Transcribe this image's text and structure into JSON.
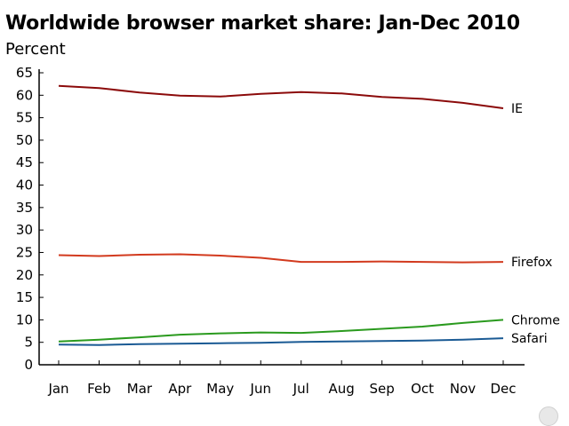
{
  "chart_data": {
    "type": "line",
    "title": "Worldwide browser market share: Jan-Dec 2010",
    "ylabel": "Percent",
    "xlabel": "",
    "categories": [
      "Jan",
      "Feb",
      "Mar",
      "Apr",
      "May",
      "Jun",
      "Jul",
      "Aug",
      "Sep",
      "Oct",
      "Nov",
      "Dec"
    ],
    "ylim": [
      0,
      65
    ],
    "yticks": [
      0,
      5,
      10,
      15,
      20,
      25,
      30,
      35,
      40,
      45,
      50,
      55,
      60,
      65
    ],
    "grid": false,
    "legend": "inline-right",
    "series": [
      {
        "name": "IE",
        "color": "#8b0a0a",
        "values": [
          62.1,
          61.6,
          60.6,
          59.9,
          59.7,
          60.3,
          60.7,
          60.4,
          59.6,
          59.2,
          58.3,
          57.1
        ]
      },
      {
        "name": "Firefox",
        "color": "#d23a1e",
        "values": [
          24.4,
          24.2,
          24.5,
          24.6,
          24.3,
          23.8,
          22.9,
          22.9,
          23.0,
          22.9,
          22.8,
          22.9
        ]
      },
      {
        "name": "Chrome",
        "color": "#2a9a1e",
        "values": [
          5.2,
          5.6,
          6.1,
          6.7,
          7.0,
          7.2,
          7.1,
          7.5,
          8.0,
          8.5,
          9.3,
          10.0
        ]
      },
      {
        "name": "Safari",
        "color": "#1a5a94",
        "values": [
          4.5,
          4.4,
          4.6,
          4.7,
          4.8,
          4.9,
          5.1,
          5.2,
          5.3,
          5.4,
          5.6,
          5.9
        ]
      }
    ]
  }
}
